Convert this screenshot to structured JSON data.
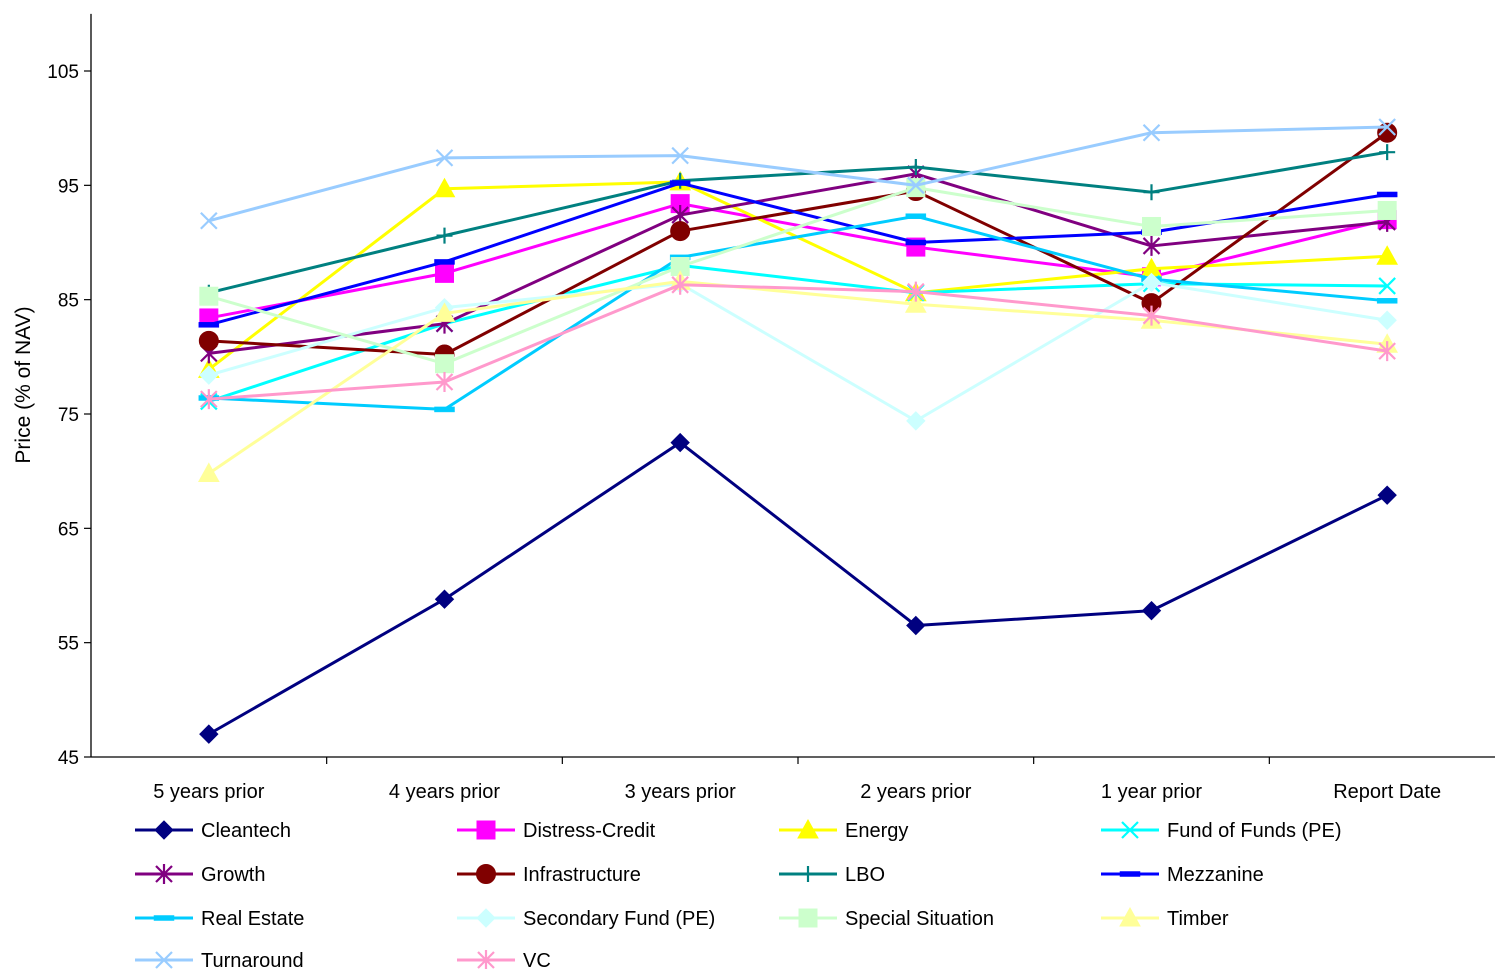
{
  "chart_data": {
    "type": "line",
    "title": "",
    "xlabel": "",
    "ylabel": "Price (% of NAV)",
    "ylim": [
      45,
      110
    ],
    "yticks": [
      45,
      55,
      65,
      75,
      85,
      95,
      105
    ],
    "grid": false,
    "legend_position": "bottom",
    "categories": [
      "5 years prior",
      "4 years prior",
      "3 years prior",
      "2 years prior",
      "1 year prior",
      "Report Date"
    ],
    "series": [
      {
        "name": "Cleantech",
        "color": "#000080",
        "marker": "diamond",
        "values": [
          47.0,
          58.8,
          72.5,
          56.5,
          57.8,
          67.9
        ]
      },
      {
        "name": "Distress-Credit",
        "color": "#FF00FF",
        "marker": "square",
        "values": [
          83.4,
          87.3,
          93.4,
          89.6,
          87.0,
          92.0
        ]
      },
      {
        "name": "Energy",
        "color": "#FFFF00",
        "marker": "triangle",
        "values": [
          78.9,
          94.7,
          95.3,
          85.6,
          87.7,
          88.8
        ]
      },
      {
        "name": "Fund of Funds (PE)",
        "color": "#00FFFF",
        "marker": "x",
        "values": [
          76.1,
          82.9,
          88.0,
          85.6,
          86.4,
          86.2
        ]
      },
      {
        "name": "Growth",
        "color": "#800080",
        "marker": "star",
        "values": [
          80.3,
          82.9,
          92.4,
          96.0,
          89.7,
          91.8
        ]
      },
      {
        "name": "Infrastructure",
        "color": "#800000",
        "marker": "circle",
        "values": [
          81.4,
          80.2,
          91.0,
          94.5,
          84.7,
          99.6
        ]
      },
      {
        "name": "LBO",
        "color": "#008080",
        "marker": "plus",
        "values": [
          85.6,
          90.6,
          95.4,
          96.6,
          94.4,
          97.9
        ]
      },
      {
        "name": "Mezzanine",
        "color": "#0000FF",
        "marker": "dash",
        "values": [
          82.8,
          88.3,
          95.2,
          90.0,
          90.9,
          94.2
        ]
      },
      {
        "name": "Real Estate",
        "color": "#00CCFF",
        "marker": "dash",
        "values": [
          76.4,
          75.4,
          88.7,
          92.3,
          86.8,
          84.9
        ]
      },
      {
        "name": "Secondary Fund (PE)",
        "color": "#CCFFFF",
        "marker": "diamond",
        "values": [
          78.4,
          84.3,
          86.4,
          74.4,
          86.5,
          83.2
        ]
      },
      {
        "name": "Special Situation",
        "color": "#CCFFCC",
        "marker": "square",
        "values": [
          85.3,
          79.4,
          87.9,
          94.8,
          91.4,
          92.8
        ]
      },
      {
        "name": "Timber",
        "color": "#FFFF99",
        "marker": "triangle",
        "values": [
          69.8,
          83.8,
          86.6,
          84.6,
          83.2,
          81.1
        ]
      },
      {
        "name": "Turnaround",
        "color": "#99CCFF",
        "marker": "x",
        "values": [
          91.9,
          97.4,
          97.6,
          95.0,
          99.6,
          100.1
        ]
      },
      {
        "name": "VC",
        "color": "#FF99CC",
        "marker": "star",
        "values": [
          76.3,
          77.8,
          86.3,
          85.7,
          83.6,
          80.5
        ]
      }
    ]
  }
}
